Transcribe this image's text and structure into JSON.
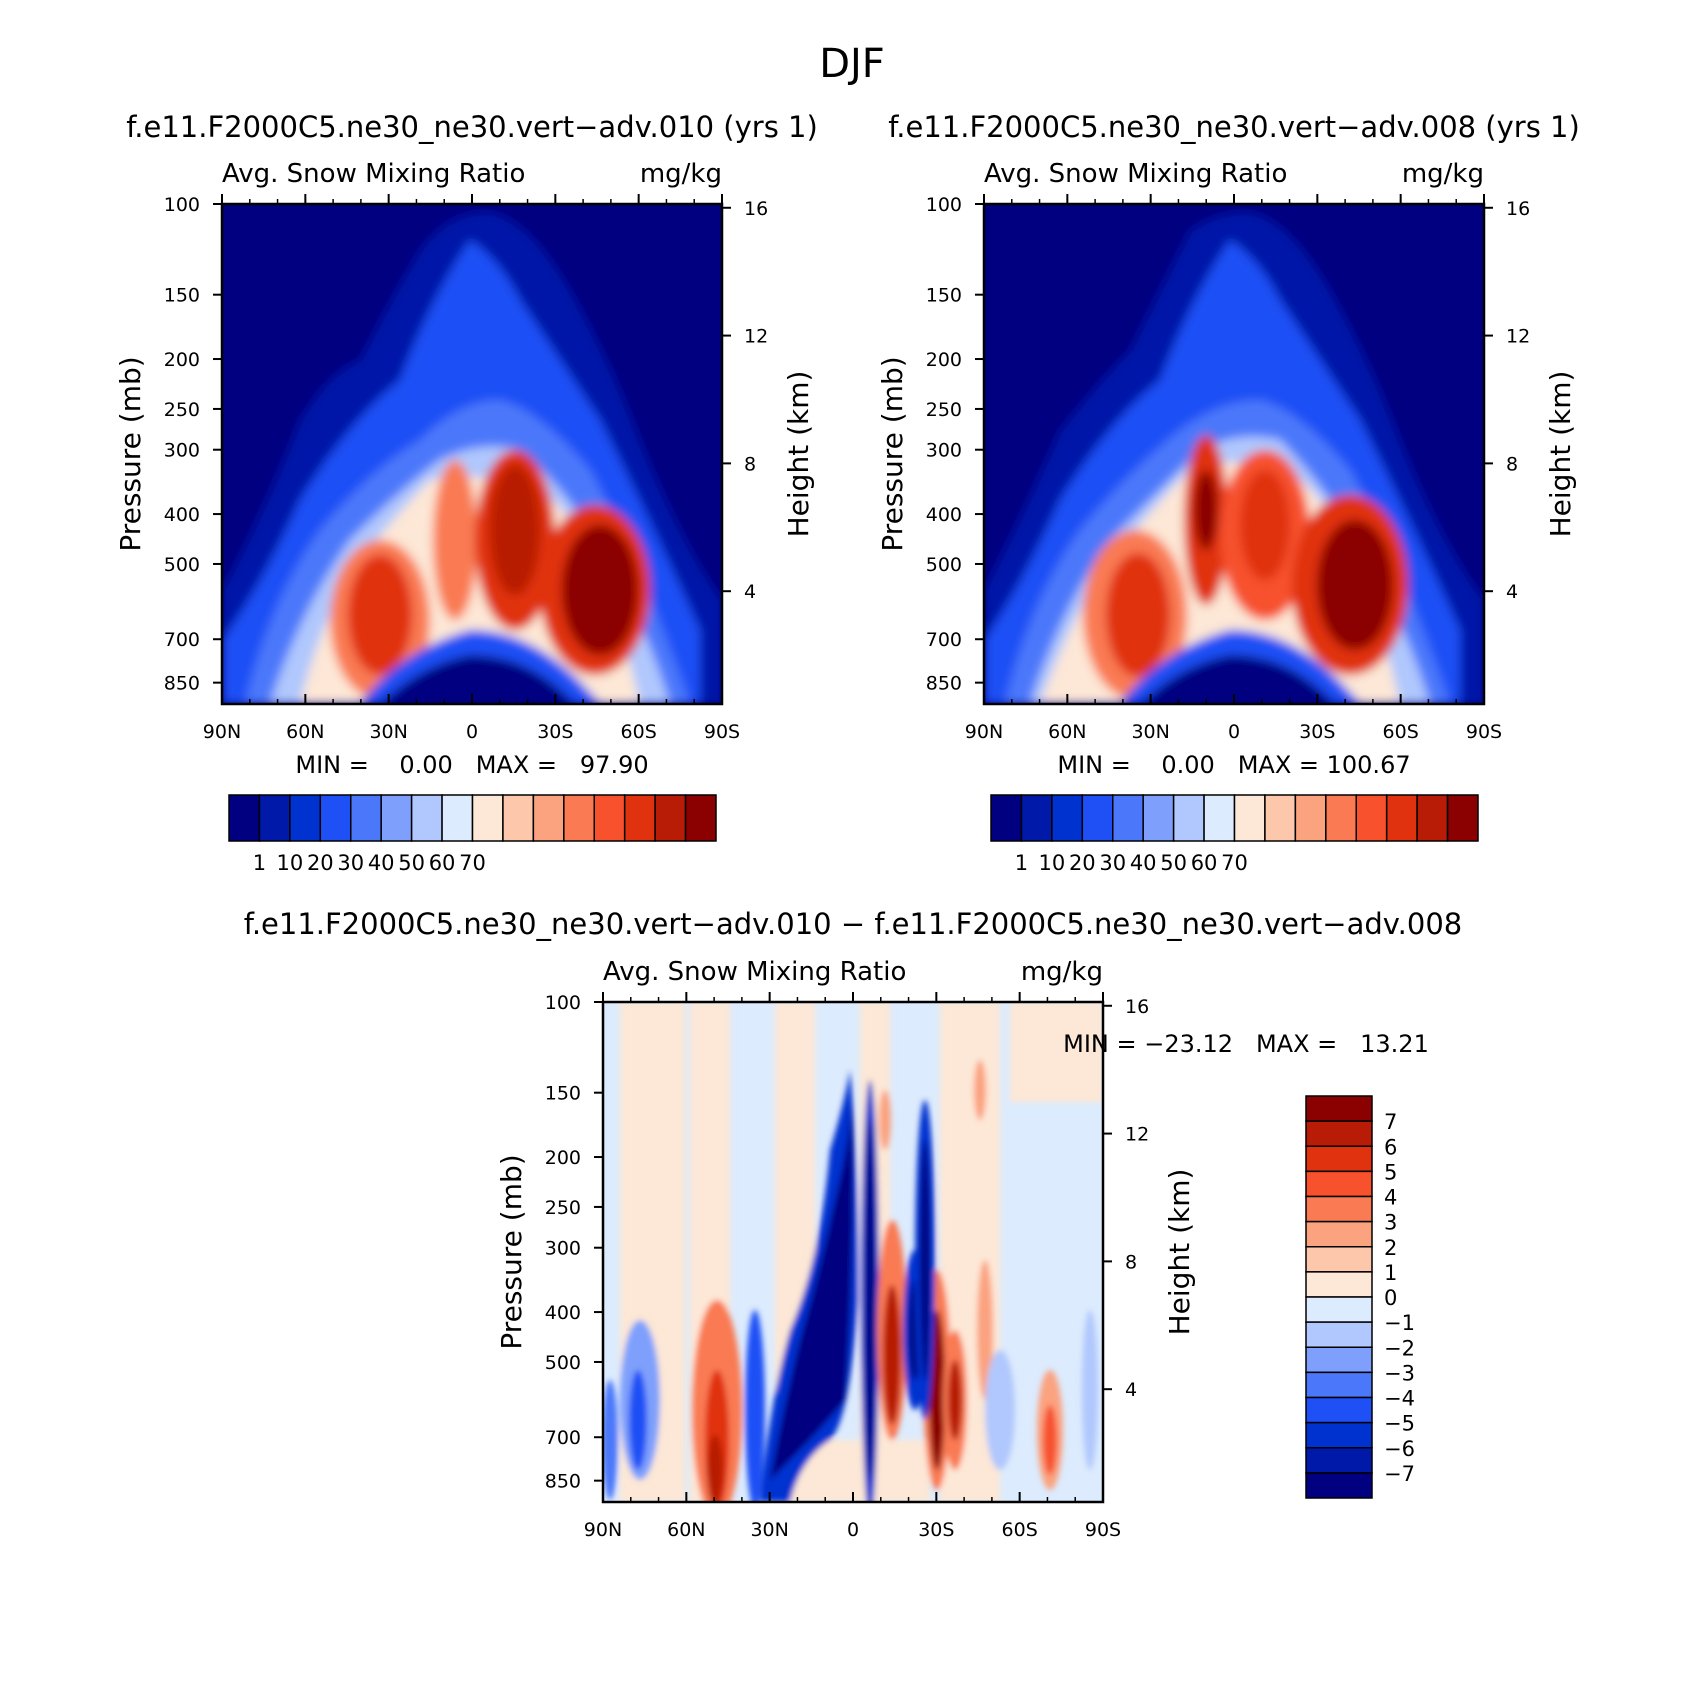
{
  "page_title": "DJF",
  "colors": {
    "abs_scale": [
      "#000080",
      "#0019a8",
      "#0032d0",
      "#1e50f5",
      "#4b78fa",
      "#7ea0fc",
      "#b0c8fd",
      "#dcebfd",
      "#fde7d6",
      "#fcc7ab",
      "#fba27f",
      "#f97a53",
      "#f7512d",
      "#e0320f",
      "#b81c06",
      "#8b0000"
    ],
    "diff_scale": [
      "#000080",
      "#0019a8",
      "#0032d0",
      "#1e50f5",
      "#4b78fa",
      "#7ea0fc",
      "#b0c8fd",
      "#dcebfd",
      "#fde7d6",
      "#fcc7ab",
      "#fba27f",
      "#f97a53",
      "#f7512d",
      "#e0320f",
      "#b81c06",
      "#8b0000"
    ]
  },
  "chart_data": [
    {
      "type": "heatmap",
      "title": "f.e11.F2000C5.ne30_ne30.vert−adv.010 (yrs 1)",
      "subtitle_left": "Avg. Snow Mixing Ratio",
      "subtitle_right": "mg/kg",
      "ylabel": "Pressure (mb)",
      "ylabel_right": "Height (km)",
      "x_ticks": [
        "90N",
        "60N",
        "30N",
        "0",
        "30S",
        "60S",
        "90S"
      ],
      "x_lats": [
        90,
        60,
        30,
        0,
        -30,
        -60,
        -90
      ],
      "y_ticks": [
        "100",
        "150",
        "200",
        "250",
        "300",
        "400",
        "500",
        "700",
        "850"
      ],
      "y_pressures": [
        100,
        150,
        200,
        250,
        300,
        400,
        500,
        700,
        850
      ],
      "y_right_ticks": [
        "16",
        "12",
        "8",
        "4"
      ],
      "y_right_km": [
        16,
        12,
        8,
        4
      ],
      "min_text": "MIN =    0.00   MAX =   97.90",
      "min": 0.0,
      "max": 97.9,
      "colorbar_labels": [
        "1",
        "10",
        "20",
        "30",
        "40",
        "50",
        "60",
        "70"
      ],
      "levels": [
        1,
        10,
        20,
        30,
        40,
        50,
        60,
        70
      ]
    },
    {
      "type": "heatmap",
      "title": "f.e11.F2000C5.ne30_ne30.vert−adv.008 (yrs 1)",
      "subtitle_left": "Avg. Snow Mixing Ratio",
      "subtitle_right": "mg/kg",
      "ylabel": "Pressure (mb)",
      "ylabel_right": "Height (km)",
      "x_ticks": [
        "90N",
        "60N",
        "30N",
        "0",
        "30S",
        "60S",
        "90S"
      ],
      "x_lats": [
        90,
        60,
        30,
        0,
        -30,
        -60,
        -90
      ],
      "y_ticks": [
        "100",
        "150",
        "200",
        "250",
        "300",
        "400",
        "500",
        "700",
        "850"
      ],
      "y_pressures": [
        100,
        150,
        200,
        250,
        300,
        400,
        500,
        700,
        850
      ],
      "y_right_ticks": [
        "16",
        "12",
        "8",
        "4"
      ],
      "y_right_km": [
        16,
        12,
        8,
        4
      ],
      "min_text": "MIN =    0.00   MAX = 100.67",
      "min": 0.0,
      "max": 100.67,
      "colorbar_labels": [
        "1",
        "10",
        "20",
        "30",
        "40",
        "50",
        "60",
        "70"
      ],
      "levels": [
        1,
        10,
        20,
        30,
        40,
        50,
        60,
        70
      ]
    },
    {
      "type": "heatmap",
      "title": "f.e11.F2000C5.ne30_ne30.vert−adv.010 − f.e11.F2000C5.ne30_ne30.vert−adv.008",
      "subtitle_left": "Avg. Snow Mixing Ratio",
      "subtitle_right": "mg/kg",
      "ylabel": "Pressure (mb)",
      "ylabel_right": "Height (km)",
      "x_ticks": [
        "90N",
        "60N",
        "30N",
        "0",
        "30S",
        "60S",
        "90S"
      ],
      "x_lats": [
        90,
        60,
        30,
        0,
        -30,
        -60,
        -90
      ],
      "y_ticks": [
        "100",
        "150",
        "200",
        "250",
        "300",
        "400",
        "500",
        "700",
        "850"
      ],
      "y_pressures": [
        100,
        150,
        200,
        250,
        300,
        400,
        500,
        700,
        850
      ],
      "y_right_ticks": [
        "16",
        "12",
        "8",
        "4"
      ],
      "y_right_km": [
        16,
        12,
        8,
        4
      ],
      "min_text": "MIN = −23.12   MAX =   13.21",
      "min": -23.12,
      "max": 13.21,
      "colorbar_labels": [
        "7",
        "6",
        "5",
        "4",
        "3",
        "2",
        "1",
        "0",
        "−1",
        "−2",
        "−3",
        "−4",
        "−5",
        "−6",
        "−7"
      ],
      "levels": [
        7,
        6,
        5,
        4,
        3,
        2,
        1,
        0,
        -1,
        -2,
        -3,
        -4,
        -5,
        -6,
        -7
      ]
    }
  ]
}
